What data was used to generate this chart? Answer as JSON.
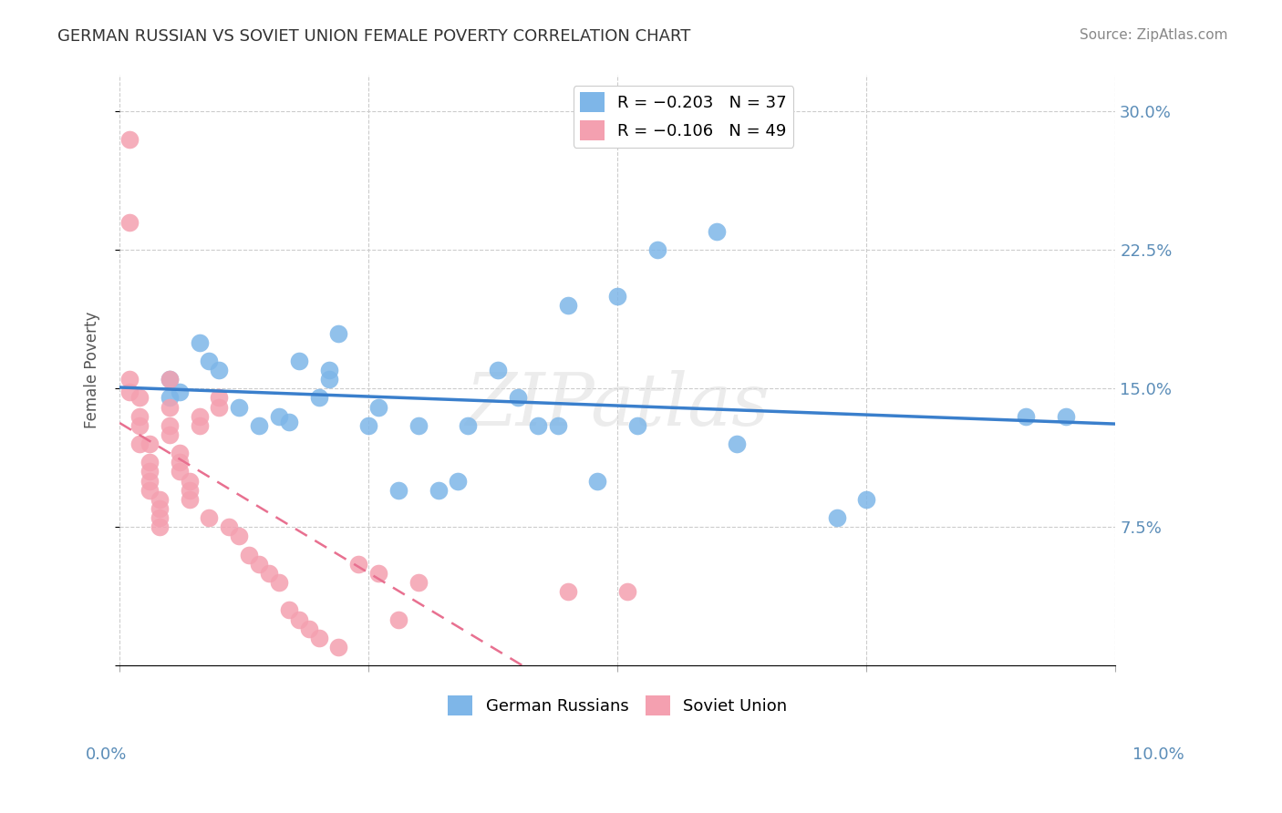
{
  "title": "GERMAN RUSSIAN VS SOVIET UNION FEMALE POVERTY CORRELATION CHART",
  "source": "Source: ZipAtlas.com",
  "ylabel": "Female Poverty",
  "y_ticks": [
    0.0,
    0.075,
    0.15,
    0.225,
    0.3
  ],
  "y_tick_labels": [
    "",
    "7.5%",
    "15.0%",
    "22.5%",
    "30.0%"
  ],
  "x_range": [
    0.0,
    0.1
  ],
  "y_range": [
    0.0,
    0.32
  ],
  "color_blue": "#7EB6E8",
  "color_pink": "#F4A0B0",
  "color_line_blue": "#3A7FCC",
  "color_line_pink": "#E87090",
  "color_axis_labels": "#5B8DB8",
  "german_russians_x": [
    0.006,
    0.005,
    0.005,
    0.008,
    0.009,
    0.01,
    0.012,
    0.014,
    0.016,
    0.017,
    0.018,
    0.02,
    0.021,
    0.021,
    0.022,
    0.025,
    0.026,
    0.028,
    0.03,
    0.032,
    0.034,
    0.035,
    0.038,
    0.04,
    0.042,
    0.044,
    0.045,
    0.048,
    0.05,
    0.052,
    0.054,
    0.06,
    0.062,
    0.072,
    0.075,
    0.091,
    0.095
  ],
  "german_russians_y": [
    0.148,
    0.155,
    0.145,
    0.175,
    0.165,
    0.16,
    0.14,
    0.13,
    0.135,
    0.132,
    0.165,
    0.145,
    0.16,
    0.155,
    0.18,
    0.13,
    0.14,
    0.095,
    0.13,
    0.095,
    0.1,
    0.13,
    0.16,
    0.145,
    0.13,
    0.13,
    0.195,
    0.1,
    0.2,
    0.13,
    0.225,
    0.235,
    0.12,
    0.08,
    0.09,
    0.135,
    0.135
  ],
  "soviet_union_x": [
    0.001,
    0.001,
    0.001,
    0.001,
    0.002,
    0.002,
    0.002,
    0.002,
    0.003,
    0.003,
    0.003,
    0.003,
    0.003,
    0.004,
    0.004,
    0.004,
    0.004,
    0.005,
    0.005,
    0.005,
    0.005,
    0.006,
    0.006,
    0.006,
    0.007,
    0.007,
    0.007,
    0.008,
    0.008,
    0.009,
    0.01,
    0.01,
    0.011,
    0.012,
    0.013,
    0.014,
    0.015,
    0.016,
    0.017,
    0.018,
    0.019,
    0.02,
    0.022,
    0.024,
    0.026,
    0.028,
    0.03,
    0.045,
    0.051
  ],
  "soviet_union_y": [
    0.285,
    0.24,
    0.155,
    0.148,
    0.145,
    0.135,
    0.13,
    0.12,
    0.12,
    0.11,
    0.105,
    0.1,
    0.095,
    0.09,
    0.085,
    0.08,
    0.075,
    0.155,
    0.14,
    0.13,
    0.125,
    0.115,
    0.11,
    0.105,
    0.1,
    0.095,
    0.09,
    0.135,
    0.13,
    0.08,
    0.145,
    0.14,
    0.075,
    0.07,
    0.06,
    0.055,
    0.05,
    0.045,
    0.03,
    0.025,
    0.02,
    0.015,
    0.01,
    0.055,
    0.05,
    0.025,
    0.045,
    0.04,
    0.04
  ]
}
